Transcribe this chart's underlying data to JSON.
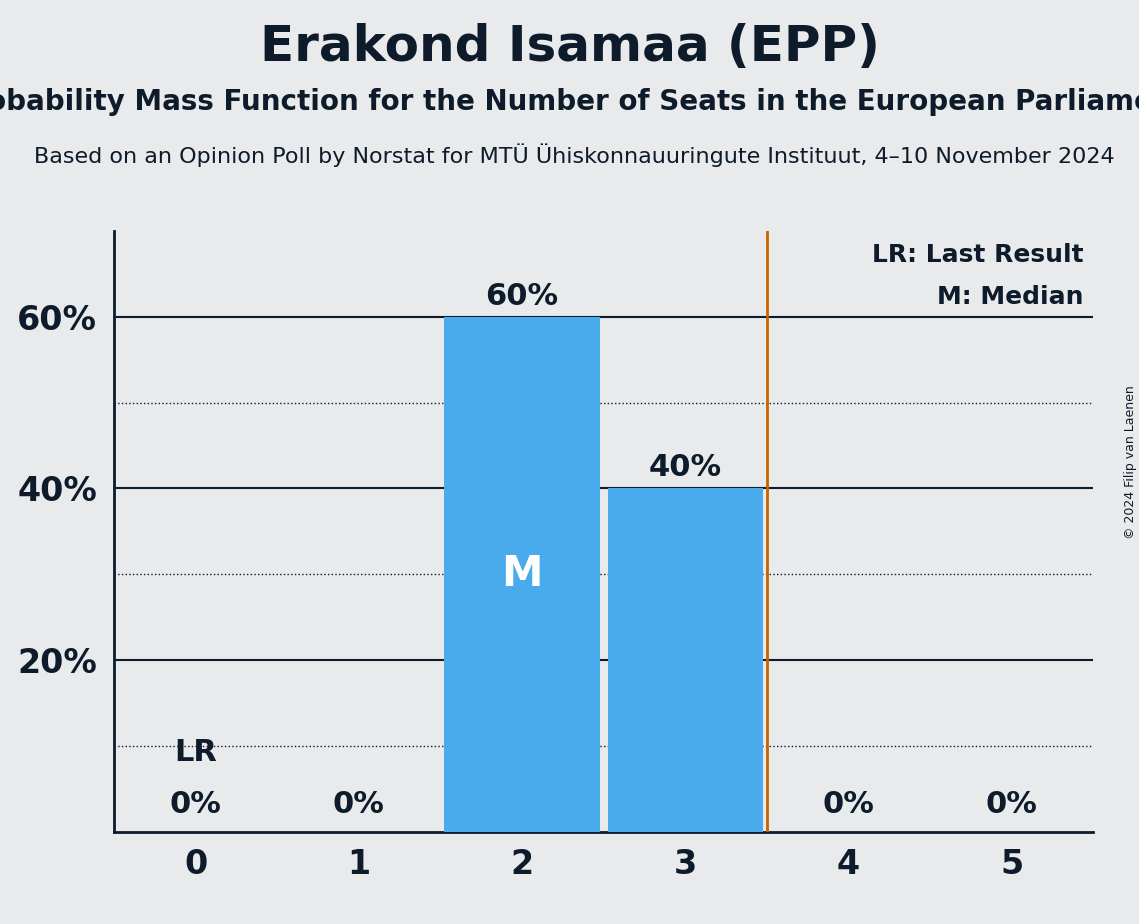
{
  "title": "Erakond Isamaa (EPP)",
  "subtitle": "Probability Mass Function for the Number of Seats in the European Parliament",
  "subsubtitle": "Based on an Opinion Poll by Norstat for MTÜ Ühiskonnauuringute Instituut, 4–10 November 2024",
  "copyright": "© 2024 Filip van Laenen",
  "seats": [
    0,
    1,
    2,
    3,
    4,
    5
  ],
  "probabilities": [
    0.0,
    0.0,
    0.6,
    0.4,
    0.0,
    0.0
  ],
  "bar_color": "#4aabec",
  "median": 2,
  "last_result": 3.5,
  "last_result_color": "#c86400",
  "background_color": "#e8eaec",
  "axis_color": "#0d1b2a",
  "ylim": [
    0,
    0.7
  ],
  "yticks": [
    0.2,
    0.4,
    0.6
  ],
  "ytick_labels": [
    "20%",
    "40%",
    "60%"
  ],
  "solid_grid": [
    0.2,
    0.4,
    0.6
  ],
  "dotted_grid": [
    0.1,
    0.3,
    0.5
  ],
  "legend_lr": "LR: Last Result",
  "legend_m": "M: Median",
  "lr_annotation": "LR",
  "title_fontsize": 36,
  "subtitle_fontsize": 20,
  "subsubtitle_fontsize": 16,
  "tick_fontsize": 24,
  "label_fontsize": 22,
  "legend_fontsize": 18
}
